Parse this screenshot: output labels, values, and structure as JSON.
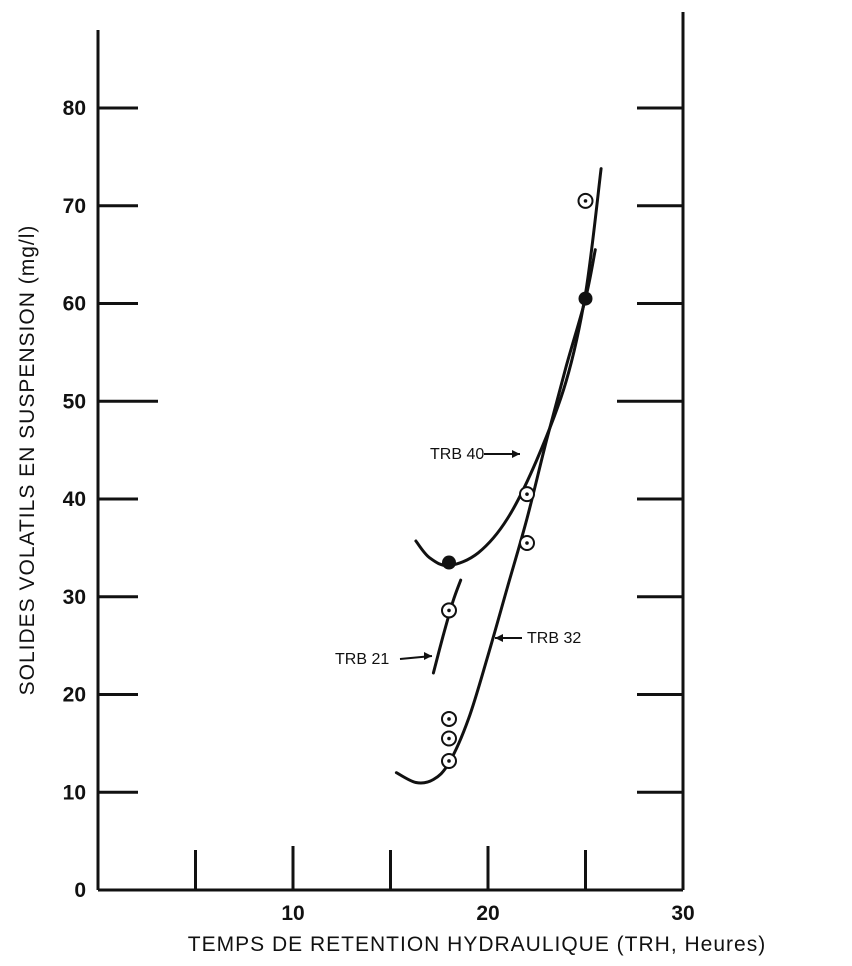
{
  "chart_data": {
    "type": "scatter",
    "xlabel": "TEMPS DE RETENTION HYDRAULIQUE (TRH, Heures)",
    "ylabel": "SOLIDES VOLATILS EN SUSPENSION (mg/l)",
    "xlim": [
      0,
      30
    ],
    "ylim": [
      0,
      80
    ],
    "x_ticks": [
      0,
      10,
      20,
      30
    ],
    "x_tick_labels": [
      "10",
      "20",
      "30"
    ],
    "y_ticks": [
      0,
      10,
      20,
      30,
      40,
      50,
      60,
      70,
      80
    ],
    "y_tick_labels": [
      "0",
      "10",
      "20",
      "30",
      "40",
      "50",
      "60",
      "70",
      "80"
    ],
    "grid": false,
    "series": [
      {
        "name": "TRB 40",
        "marker": "filled-circle",
        "points": [
          [
            18,
            33.5
          ],
          [
            25,
            60.5
          ]
        ],
        "curve": [
          [
            16.3,
            35.7
          ],
          [
            17,
            34
          ],
          [
            18,
            33.2
          ],
          [
            19.5,
            34.5
          ],
          [
            21,
            38
          ],
          [
            22.5,
            44
          ],
          [
            24,
            52
          ],
          [
            25,
            61
          ],
          [
            25.8,
            73.8
          ]
        ]
      },
      {
        "name": "TRB 32",
        "marker": "dotted-circle",
        "points": [
          [
            25,
            70.5
          ],
          [
            22,
            40.5
          ],
          [
            22,
            35.5
          ],
          [
            18,
            17.5
          ],
          [
            18,
            15.5
          ],
          [
            18,
            13.2
          ]
        ],
        "curve": [
          [
            15.3,
            12
          ],
          [
            16.3,
            11
          ],
          [
            17.2,
            11.3
          ],
          [
            18,
            13
          ],
          [
            19,
            17.5
          ],
          [
            20,
            24
          ],
          [
            21,
            31
          ],
          [
            22,
            38
          ],
          [
            23,
            46
          ],
          [
            24,
            53.5
          ],
          [
            25,
            60.5
          ],
          [
            25.5,
            65.5
          ]
        ]
      },
      {
        "name": "TRB 21",
        "marker": "dotted-circle",
        "points": [
          [
            18,
            28.6
          ]
        ],
        "curve": [
          [
            17.2,
            22.2
          ],
          [
            17.7,
            26
          ],
          [
            18.2,
            29.5
          ],
          [
            18.6,
            31.7
          ]
        ]
      }
    ],
    "labels": [
      {
        "text": "TRB 40",
        "series": "TRB 40"
      },
      {
        "text": "TRB 21",
        "series": "TRB 21"
      },
      {
        "text": "TRB 32",
        "series": "TRB 32"
      }
    ]
  }
}
